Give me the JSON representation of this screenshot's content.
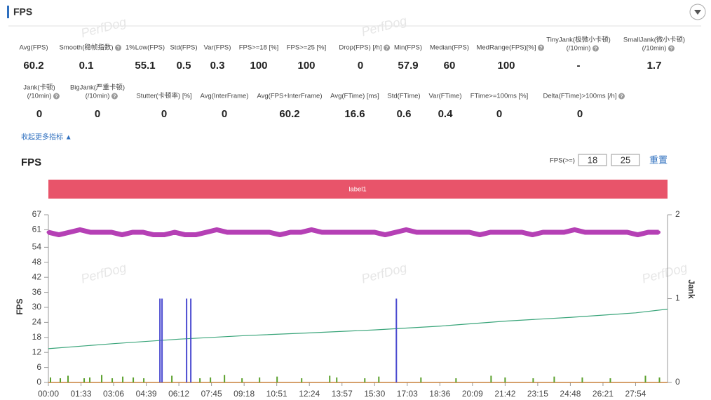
{
  "header": {
    "title": "FPS"
  },
  "watermark": "PerfDog",
  "metrics": {
    "rows": [
      [
        {
          "label": [
            "Avg(FPS)"
          ],
          "value": 60.2
        },
        {
          "label": [
            "Smooth(稳帧指数)"
          ],
          "value": 0.1,
          "help": true
        },
        {
          "label": [
            "1%Low(FPS)"
          ],
          "value": 55.1
        },
        {
          "label": [
            "Std(FPS)"
          ],
          "value": 0.5
        },
        {
          "label": [
            "Var(FPS)"
          ],
          "value": 0.3
        },
        {
          "label": [
            "FPS>=18 [%]"
          ],
          "value": 100
        },
        {
          "label": [
            "FPS>=25 [%]"
          ],
          "value": 100
        },
        {
          "label": [
            "Drop(FPS) [/h]"
          ],
          "value": 0,
          "help": true
        },
        {
          "label": [
            "Min(FPS)"
          ],
          "value": 57.9
        },
        {
          "label": [
            "Median(FPS)"
          ],
          "value": 60
        },
        {
          "label": [
            "MedRange(FPS)[%]"
          ],
          "value": 100,
          "help": true
        },
        {
          "label": [
            "TinyJank(极微小卡顿)",
            "(/10min)"
          ],
          "value": "-",
          "help": true
        },
        {
          "label": [
            "SmallJank(微小卡顿)",
            "(/10min)"
          ],
          "value": 1.7,
          "help": true
        }
      ],
      [
        {
          "label": [
            "Jank(卡顿)",
            "(/10min)"
          ],
          "value": 0,
          "help": true
        },
        {
          "label": [
            "BigJank(严重卡顿)",
            "(/10min)"
          ],
          "value": 0,
          "help": true
        },
        {
          "label": [
            "Stutter(卡顿率) [%]"
          ],
          "value": 0
        },
        {
          "label": [
            "Avg(InterFrame)"
          ],
          "value": 0
        },
        {
          "label": [
            "Avg(FPS+InterFrame)"
          ],
          "value": 60.2
        },
        {
          "label": [
            "Avg(FTime) [ms]"
          ],
          "value": 16.6
        },
        {
          "label": [
            "Std(FTime)"
          ],
          "value": 0.6
        },
        {
          "label": [
            "Var(FTime)"
          ],
          "value": 0.4
        },
        {
          "label": [
            "FTime>=100ms [%]"
          ],
          "value": 0
        },
        {
          "label": [
            "Delta(FTime)>100ms [/h]"
          ],
          "value": 0,
          "help": true
        }
      ]
    ]
  },
  "collapse_link": "收起更多指标 ▲",
  "chart_title": "FPS",
  "threshold": {
    "label": "FPS(>=)",
    "values": [
      18,
      25
    ],
    "reset": "重置"
  },
  "chart_data": {
    "type": "line",
    "band_label": "label1",
    "ylabel": "FPS",
    "y2label": "Jank",
    "xlim": [
      0,
      1765
    ],
    "xticks": [
      {
        "value": 0,
        "label": "00:00"
      },
      {
        "value": 93,
        "label": "01:33"
      },
      {
        "value": 186,
        "label": "03:06"
      },
      {
        "value": 279,
        "label": "04:39"
      },
      {
        "value": 372,
        "label": "06:12"
      },
      {
        "value": 465,
        "label": "07:45"
      },
      {
        "value": 558,
        "label": "09:18"
      },
      {
        "value": 651,
        "label": "10:51"
      },
      {
        "value": 744,
        "label": "12:24"
      },
      {
        "value": 837,
        "label": "13:57"
      },
      {
        "value": 930,
        "label": "15:30"
      },
      {
        "value": 1023,
        "label": "17:03"
      },
      {
        "value": 1116,
        "label": "18:36"
      },
      {
        "value": 1209,
        "label": "20:09"
      },
      {
        "value": 1302,
        "label": "21:42"
      },
      {
        "value": 1395,
        "label": "23:15"
      },
      {
        "value": 1488,
        "label": "24:48"
      },
      {
        "value": 1581,
        "label": "26:21"
      },
      {
        "value": 1674,
        "label": "27:54"
      }
    ],
    "ylim": [
      0,
      67
    ],
    "yticks": [
      0,
      6,
      12,
      18,
      24,
      30,
      36,
      42,
      48,
      54,
      61,
      67
    ],
    "y2lim": [
      0,
      2
    ],
    "y2ticks": [
      0,
      1,
      2
    ],
    "series": [
      {
        "mark": "band",
        "color": "#b540b5",
        "x": [
          0,
          30,
          60,
          90,
          120,
          150,
          180,
          210,
          240,
          270,
          300,
          330,
          360,
          390,
          420,
          450,
          480,
          510,
          540,
          570,
          600,
          630,
          660,
          690,
          720,
          750,
          780,
          810,
          840,
          870,
          900,
          930,
          960,
          990,
          1020,
          1050,
          1080,
          1110,
          1140,
          1170,
          1200,
          1230,
          1260,
          1290,
          1320,
          1350,
          1380,
          1410,
          1440,
          1470,
          1500,
          1530,
          1560,
          1590,
          1620,
          1650,
          1680,
          1710,
          1740
        ],
        "values": [
          60,
          59,
          60,
          61,
          60,
          60,
          60,
          59,
          60,
          60,
          59,
          59,
          60,
          59,
          59,
          60,
          61,
          60,
          60,
          60,
          60,
          60,
          59,
          60,
          60,
          61,
          60,
          60,
          60,
          60,
          60,
          60,
          59,
          60,
          61,
          60,
          60,
          60,
          60,
          60,
          60,
          59,
          60,
          60,
          60,
          60,
          59,
          60,
          60,
          60,
          61,
          60,
          60,
          60,
          60,
          60,
          59,
          60,
          60
        ]
      },
      {
        "mark": "line",
        "color": "#3aa57a",
        "x": [
          0,
          186,
          372,
          558,
          744,
          930,
          1116,
          1302,
          1488,
          1674,
          1765
        ],
        "values": [
          13.5,
          15.5,
          17.3,
          18.7,
          19.8,
          21,
          22.5,
          24.5,
          26,
          27.8,
          29.3
        ]
      },
      {
        "mark": "bar",
        "axis": "y2",
        "color": "#4a4ad0",
        "x": [
          318,
          324,
          394,
          406,
          992
        ],
        "values": [
          1,
          1,
          1,
          1,
          1
        ]
      },
      {
        "mark": "bar",
        "axis": "y2",
        "color": "#5aa02c",
        "x": [
          6,
          34,
          56,
          102,
          118,
          152,
          182,
          212,
          242,
          272,
          352,
          432,
          462,
          502,
          552,
          602,
          652,
          722,
          802,
          822,
          902,
          942,
          1062,
          1162,
          1262,
          1302,
          1382,
          1442,
          1522,
          1602,
          1702,
          1742
        ],
        "values": [
          0.06,
          0.05,
          0.08,
          0.05,
          0.06,
          0.09,
          0.05,
          0.07,
          0.06,
          0.05,
          0.08,
          0.05,
          0.06,
          0.09,
          0.05,
          0.06,
          0.07,
          0.05,
          0.08,
          0.06,
          0.05,
          0.07,
          0.06,
          0.05,
          0.08,
          0.06,
          0.05,
          0.07,
          0.06,
          0.05,
          0.08,
          0.06
        ]
      }
    ]
  }
}
